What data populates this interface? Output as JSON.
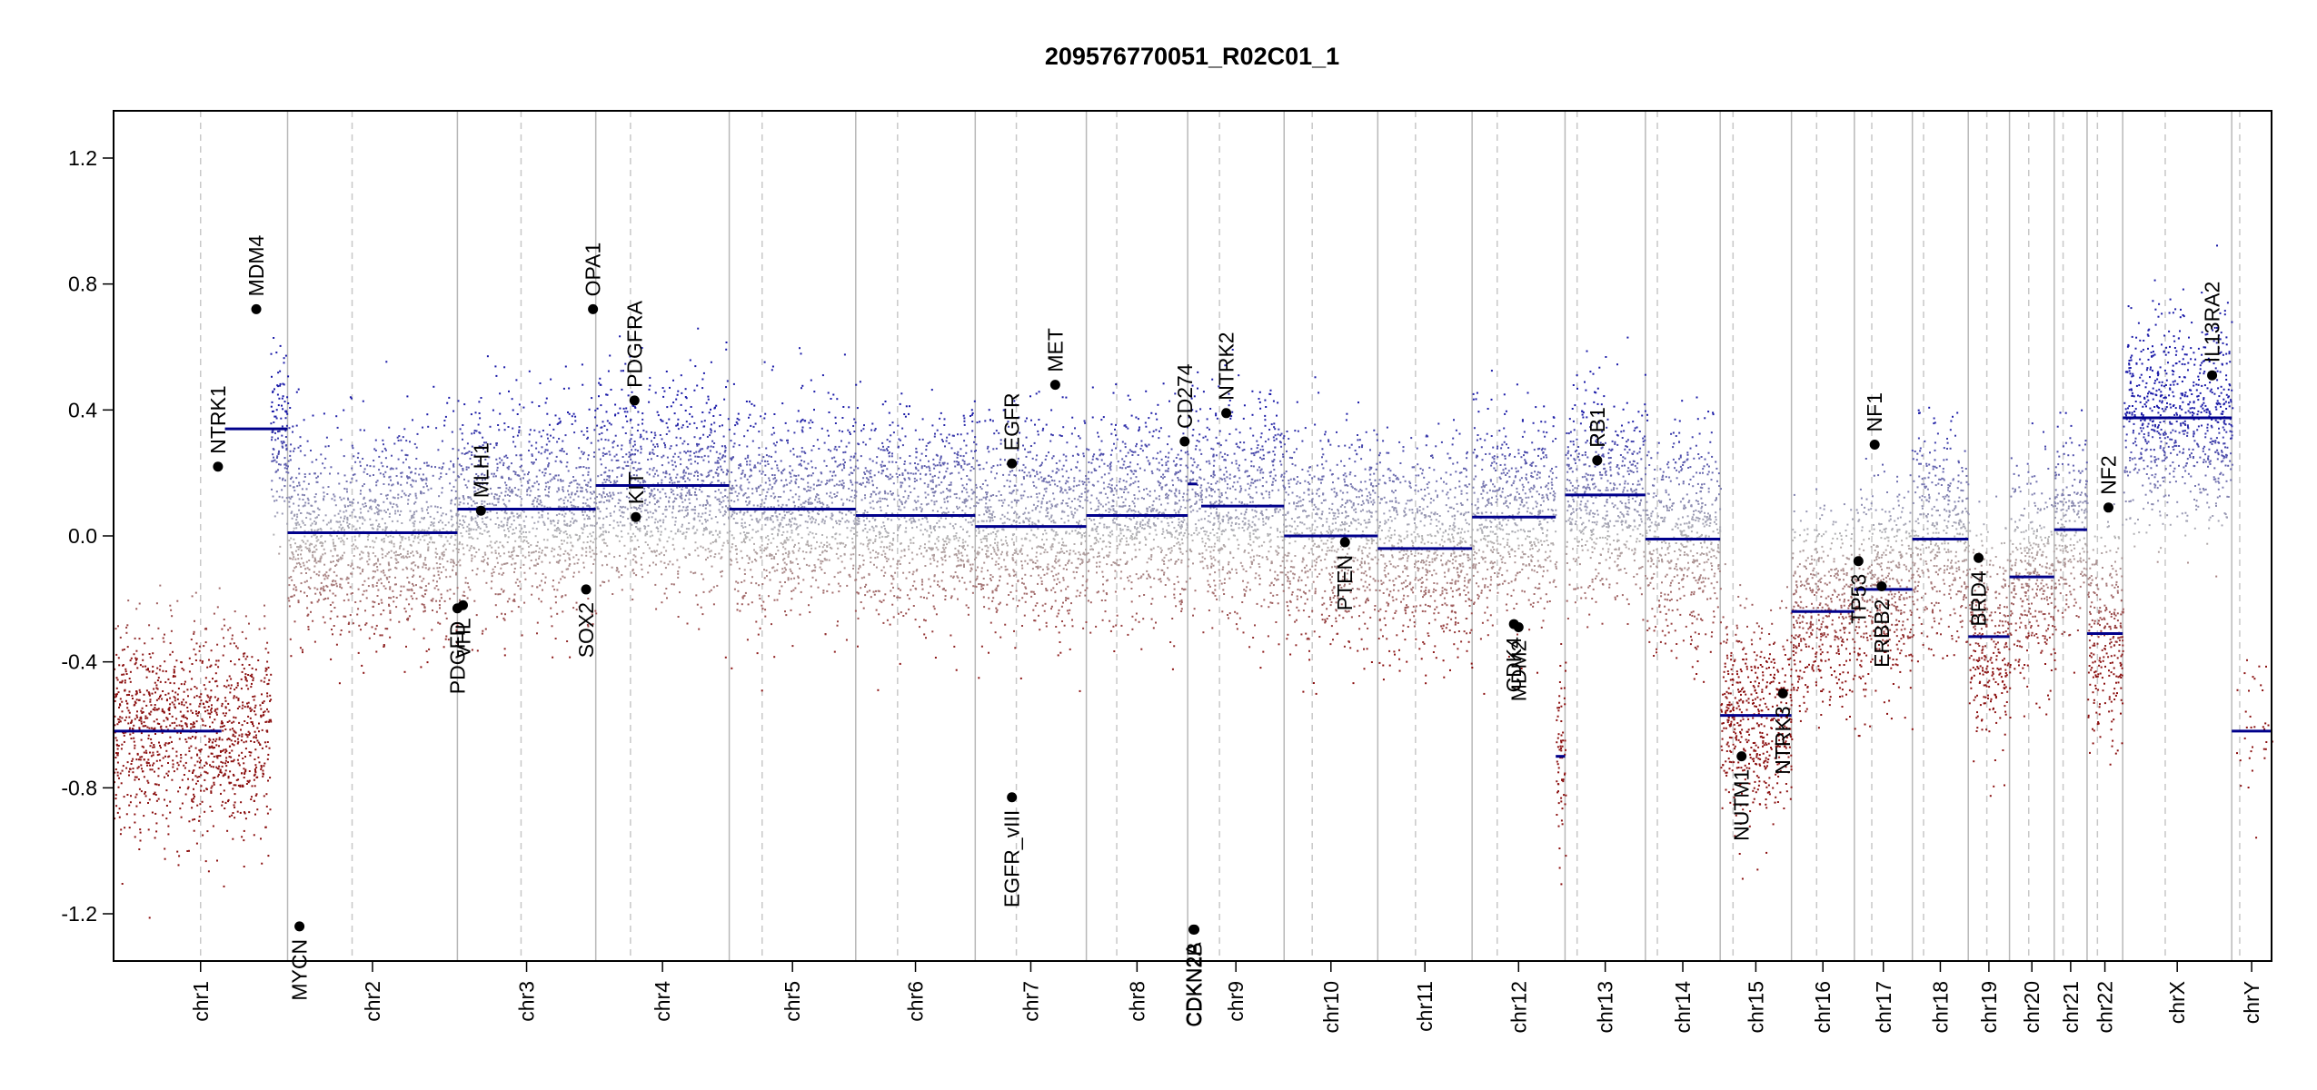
{
  "chart_data": {
    "type": "scatter",
    "title": "209576770051_R02C01_1",
    "xlabel": "",
    "ylabel": "",
    "ylim": [
      -1.35,
      1.35
    ],
    "yticks": [
      -1.2,
      -0.8,
      -0.4,
      0.0,
      0.4,
      0.8,
      1.2
    ],
    "ytick_labels": [
      "-1.2",
      "-0.8",
      "-0.4",
      "0.0",
      "0.4",
      "0.8",
      "1.2"
    ],
    "point_colors": {
      "gain": "#1a1aa8",
      "neutral": "#b4b4b4",
      "loss": "#8b1010"
    },
    "segment_color": "#00008b",
    "chromosomes": [
      {
        "name": "chr1",
        "len": 249,
        "centro": 0.5
      },
      {
        "name": "chr2",
        "len": 243,
        "centro": 0.38
      },
      {
        "name": "chr3",
        "len": 198,
        "centro": 0.46
      },
      {
        "name": "chr4",
        "len": 191,
        "centro": 0.26
      },
      {
        "name": "chr5",
        "len": 181,
        "centro": 0.26
      },
      {
        "name": "chr6",
        "len": 171,
        "centro": 0.35
      },
      {
        "name": "chr7",
        "len": 159,
        "centro": 0.37
      },
      {
        "name": "chr8",
        "len": 145,
        "centro": 0.3
      },
      {
        "name": "chr9",
        "len": 138,
        "centro": 0.33
      },
      {
        "name": "chr10",
        "len": 134,
        "centro": 0.3
      },
      {
        "name": "chr11",
        "len": 135,
        "centro": 0.4
      },
      {
        "name": "chr12",
        "len": 133,
        "centro": 0.27
      },
      {
        "name": "chr13",
        "len": 115,
        "centro": 0.15
      },
      {
        "name": "chr14",
        "len": 107,
        "centro": 0.16
      },
      {
        "name": "chr15",
        "len": 102,
        "centro": 0.18
      },
      {
        "name": "chr16",
        "len": 90,
        "centro": 0.4
      },
      {
        "name": "chr17",
        "len": 83,
        "centro": 0.3
      },
      {
        "name": "chr18",
        "len": 80,
        "centro": 0.2
      },
      {
        "name": "chr19",
        "len": 59,
        "centro": 0.45
      },
      {
        "name": "chr20",
        "len": 64,
        "centro": 0.43
      },
      {
        "name": "chr21",
        "len": 47,
        "centro": 0.27
      },
      {
        "name": "chr22",
        "len": 51,
        "centro": 0.29
      },
      {
        "name": "chrX",
        "len": 156,
        "centro": 0.39
      },
      {
        "name": "chrY",
        "len": 57,
        "centro": 0.2
      }
    ],
    "segments": [
      {
        "chr": "chr1",
        "start": 0.0,
        "end": 1.0,
        "value": -0.62
      },
      {
        "chr": "chr1",
        "start": 0.0,
        "end": 1.0,
        "value": 0.34,
        "chr_end": "chr1b"
      },
      {
        "chr": "chr2",
        "start": 0.0,
        "end": 1.0,
        "value": 0.01
      },
      {
        "chr": "chr3",
        "start": 0.0,
        "end": 1.0,
        "value": 0.085
      },
      {
        "chr": "chr4",
        "start": 0.0,
        "end": 1.0,
        "value": 0.16
      },
      {
        "chr": "chr5",
        "start": 0.0,
        "end": 1.0,
        "value": 0.085
      },
      {
        "chr": "chr6",
        "start": 0.0,
        "end": 1.0,
        "value": 0.065
      },
      {
        "chr": "chr7",
        "start": 0.0,
        "end": 1.0,
        "value": 0.03
      },
      {
        "chr": "chr8",
        "start": 0.0,
        "end": 1.0,
        "value": 0.065
      },
      {
        "chr": "chr9",
        "start": 0.0,
        "end": 0.1,
        "value": 0.165
      },
      {
        "chr": "chr9",
        "start": 0.14,
        "end": 1.0,
        "value": 0.095
      },
      {
        "chr": "chr10",
        "start": 0.0,
        "end": 1.0,
        "value": 0.0
      },
      {
        "chr": "chr11",
        "start": 0.0,
        "end": 1.0,
        "value": -0.04
      },
      {
        "chr": "chr12",
        "start": 0.0,
        "end": 0.9,
        "value": 0.06
      },
      {
        "chr": "chr12",
        "start": 0.9,
        "end": 1.0,
        "value": -0.7
      },
      {
        "chr": "chr13",
        "start": 0.0,
        "end": 1.0,
        "value": 0.13
      },
      {
        "chr": "chr14",
        "start": 0.0,
        "end": 1.0,
        "value": -0.01
      },
      {
        "chr": "chr15",
        "start": 0.0,
        "end": 1.0,
        "value": -0.57
      },
      {
        "chr": "chr16",
        "start": 0.0,
        "end": 1.0,
        "value": -0.24
      },
      {
        "chr": "chr17",
        "start": 0.0,
        "end": 1.0,
        "value": -0.17
      },
      {
        "chr": "chr18",
        "start": 0.0,
        "end": 1.0,
        "value": -0.01
      },
      {
        "chr": "chr19",
        "start": 0.0,
        "end": 1.0,
        "value": -0.32
      },
      {
        "chr": "chr20",
        "start": 0.0,
        "end": 1.0,
        "value": -0.13
      },
      {
        "chr": "chr21",
        "start": 0.0,
        "end": 1.0,
        "value": 0.02
      },
      {
        "chr": "chr22",
        "start": 0.0,
        "end": 1.0,
        "value": -0.31
      },
      {
        "chr": "chrX",
        "start": 0.0,
        "end": 1.0,
        "value": 0.375
      },
      {
        "chr": "chrY",
        "start": 0.0,
        "end": 1.0,
        "value": -0.62
      }
    ],
    "genes": [
      {
        "name": "NTRK1",
        "chr": "chr1",
        "pos": 0.6,
        "value": 0.22
      },
      {
        "name": "MDM4",
        "chr": "chr1",
        "pos": 0.82,
        "value": 0.72
      },
      {
        "name": "MYCN",
        "chr": "chr2",
        "pos": 0.07,
        "value": -1.24
      },
      {
        "name": "PDGFD",
        "chr": "chr3",
        "pos": 0.0,
        "value": -0.23
      },
      {
        "name": "VHL",
        "chr": "chr3",
        "pos": 0.04,
        "value": -0.22
      },
      {
        "name": "MLH1",
        "chr": "chr3",
        "pos": 0.17,
        "value": 0.08
      },
      {
        "name": "SOX2",
        "chr": "chr3",
        "pos": 0.93,
        "value": -0.17
      },
      {
        "name": "OPA1",
        "chr": "chr3",
        "pos": 0.98,
        "value": 0.72
      },
      {
        "name": "PDGFRA",
        "chr": "chr4",
        "pos": 0.29,
        "value": 0.43
      },
      {
        "name": "KIT",
        "chr": "chr4",
        "pos": 0.3,
        "value": 0.06
      },
      {
        "name": "EGFR",
        "chr": "chr7",
        "pos": 0.33,
        "value": 0.23
      },
      {
        "name": "EGFR_vIII",
        "chr": "chr7",
        "pos": 0.33,
        "value": -0.83
      },
      {
        "name": "MET",
        "chr": "chr7",
        "pos": 0.72,
        "value": 0.48
      },
      {
        "name": "CD274",
        "chr": "chr8",
        "pos": 0.97,
        "value": 0.3
      },
      {
        "name": "CDKN2A",
        "chr": "chr9",
        "pos": 0.06,
        "value": -1.25
      },
      {
        "name": "CDKN2B",
        "chr": "chr9",
        "pos": 0.07,
        "value": -1.25
      },
      {
        "name": "NTRK2",
        "chr": "chr9",
        "pos": 0.4,
        "value": 0.39
      },
      {
        "name": "PTEN",
        "chr": "chr10",
        "pos": 0.65,
        "value": -0.02
      },
      {
        "name": "CDK4",
        "chr": "chr12",
        "pos": 0.45,
        "value": -0.28
      },
      {
        "name": "MDM2",
        "chr": "chr12",
        "pos": 0.5,
        "value": -0.29
      },
      {
        "name": "RB1",
        "chr": "chr13",
        "pos": 0.4,
        "value": 0.24
      },
      {
        "name": "NUTM1",
        "chr": "chr15",
        "pos": 0.3,
        "value": -0.7
      },
      {
        "name": "NTRK3",
        "chr": "chr15",
        "pos": 0.88,
        "value": -0.5
      },
      {
        "name": "TP53",
        "chr": "chr17",
        "pos": 0.07,
        "value": -0.08
      },
      {
        "name": "NF1",
        "chr": "chr17",
        "pos": 0.35,
        "value": 0.29
      },
      {
        "name": "ERBB2",
        "chr": "chr17",
        "pos": 0.47,
        "value": -0.16
      },
      {
        "name": "BRD4",
        "chr": "chr19",
        "pos": 0.25,
        "value": -0.07
      },
      {
        "name": "NF2",
        "chr": "chr22",
        "pos": 0.6,
        "value": 0.09
      },
      {
        "name": "IL13RA2",
        "chr": "chrX",
        "pos": 0.82,
        "value": 0.51
      }
    ]
  }
}
